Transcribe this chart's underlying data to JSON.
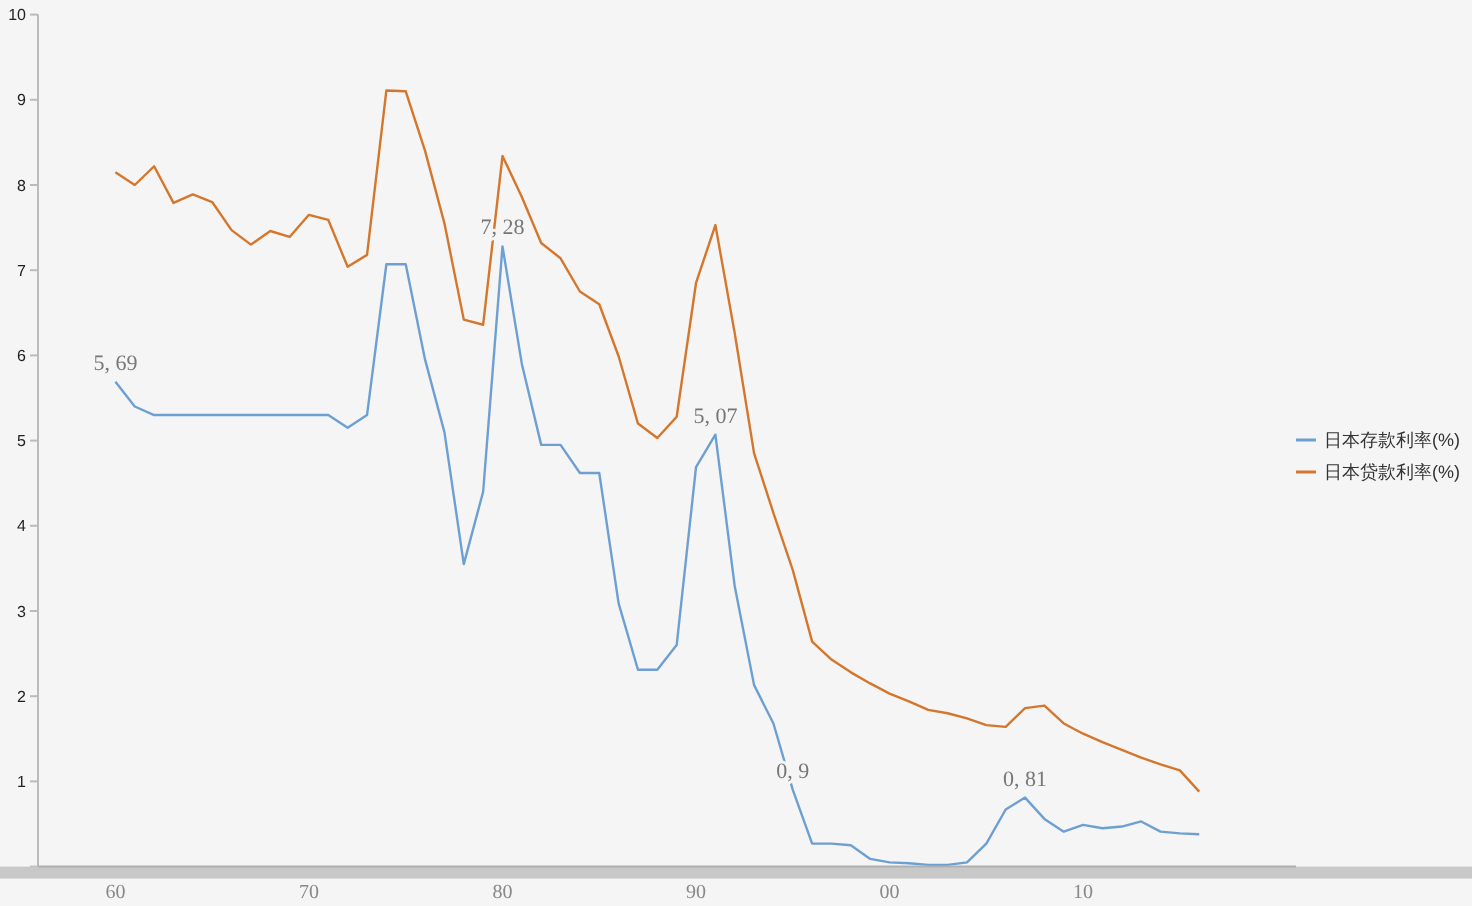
{
  "chart_data": {
    "type": "line",
    "x": [
      1960,
      1961,
      1962,
      1963,
      1964,
      1965,
      1966,
      1967,
      1968,
      1969,
      1970,
      1971,
      1972,
      1973,
      1974,
      1975,
      1976,
      1977,
      1978,
      1979,
      1980,
      1981,
      1982,
      1983,
      1984,
      1985,
      1986,
      1987,
      1988,
      1989,
      1990,
      1991,
      1992,
      1993,
      1994,
      1995,
      1996,
      1997,
      1998,
      1999,
      2000,
      2001,
      2002,
      2003,
      2004,
      2005,
      2006,
      2007,
      2008,
      2009,
      2010,
      2011,
      2012,
      2013,
      2014,
      2015,
      2016
    ],
    "series": [
      {
        "name": "日本存款利率(%)",
        "color": "#6d9fd3",
        "values": [
          5.69,
          5.4,
          5.3,
          5.3,
          5.3,
          5.3,
          5.3,
          5.3,
          5.3,
          5.3,
          5.3,
          5.3,
          5.15,
          5.3,
          7.07,
          7.07,
          5.95,
          5.1,
          3.55,
          4.4,
          7.28,
          5.9,
          4.95,
          4.95,
          4.62,
          4.62,
          3.09,
          2.31,
          2.31,
          2.6,
          4.69,
          5.07,
          3.29,
          2.13,
          1.68,
          0.9,
          0.27,
          0.27,
          0.25,
          0.09,
          0.05,
          0.04,
          0.02,
          0.02,
          0.05,
          0.27,
          0.67,
          0.81,
          0.56,
          0.41,
          0.49,
          0.45,
          0.47,
          0.53,
          0.41,
          0.39,
          0.38
        ]
      },
      {
        "name": "日本贷款利率(%)",
        "color": "#d4772c",
        "values": [
          8.15,
          8.0,
          8.22,
          7.79,
          7.89,
          7.8,
          7.47,
          7.3,
          7.46,
          7.39,
          7.65,
          7.59,
          7.04,
          7.18,
          9.11,
          9.1,
          8.4,
          7.55,
          6.42,
          6.36,
          8.34,
          7.86,
          7.32,
          7.14,
          6.75,
          6.6,
          5.99,
          5.2,
          5.03,
          5.28,
          6.85,
          7.53,
          6.26,
          4.85,
          4.15,
          3.48,
          2.64,
          2.43,
          2.28,
          2.15,
          2.03,
          1.94,
          1.84,
          1.8,
          1.74,
          1.66,
          1.64,
          1.86,
          1.89,
          1.68,
          1.56,
          1.46,
          1.37,
          1.28,
          1.2,
          1.13,
          0.88
        ]
      }
    ],
    "xlim": [
      1956,
      2021
    ],
    "xticks": [
      {
        "value": 1960,
        "label": "60"
      },
      {
        "value": 1970,
        "label": "70"
      },
      {
        "value": 1980,
        "label": "80"
      },
      {
        "value": 1990,
        "label": "90"
      },
      {
        "value": 2000,
        "label": "00"
      },
      {
        "value": 2010,
        "label": "10"
      }
    ],
    "ylim": [
      0,
      10
    ],
    "yticks": [
      {
        "value": 0,
        "label": null
      },
      1,
      2,
      3,
      4,
      5,
      6,
      7,
      8,
      9,
      10
    ],
    "annotations": [
      {
        "text": "5, 69",
        "x": 1960,
        "y": 5.69
      },
      {
        "text": "7, 28",
        "x": 1980,
        "y": 7.28
      },
      {
        "text": "5, 07",
        "x": 1991,
        "y": 5.07
      },
      {
        "text": "0, 9",
        "x": 1995,
        "y": 0.9
      },
      {
        "text": "0, 81",
        "x": 2007,
        "y": 0.81
      }
    ],
    "legend": "right",
    "grid": false,
    "marker": "none",
    "line_style": "solid"
  }
}
